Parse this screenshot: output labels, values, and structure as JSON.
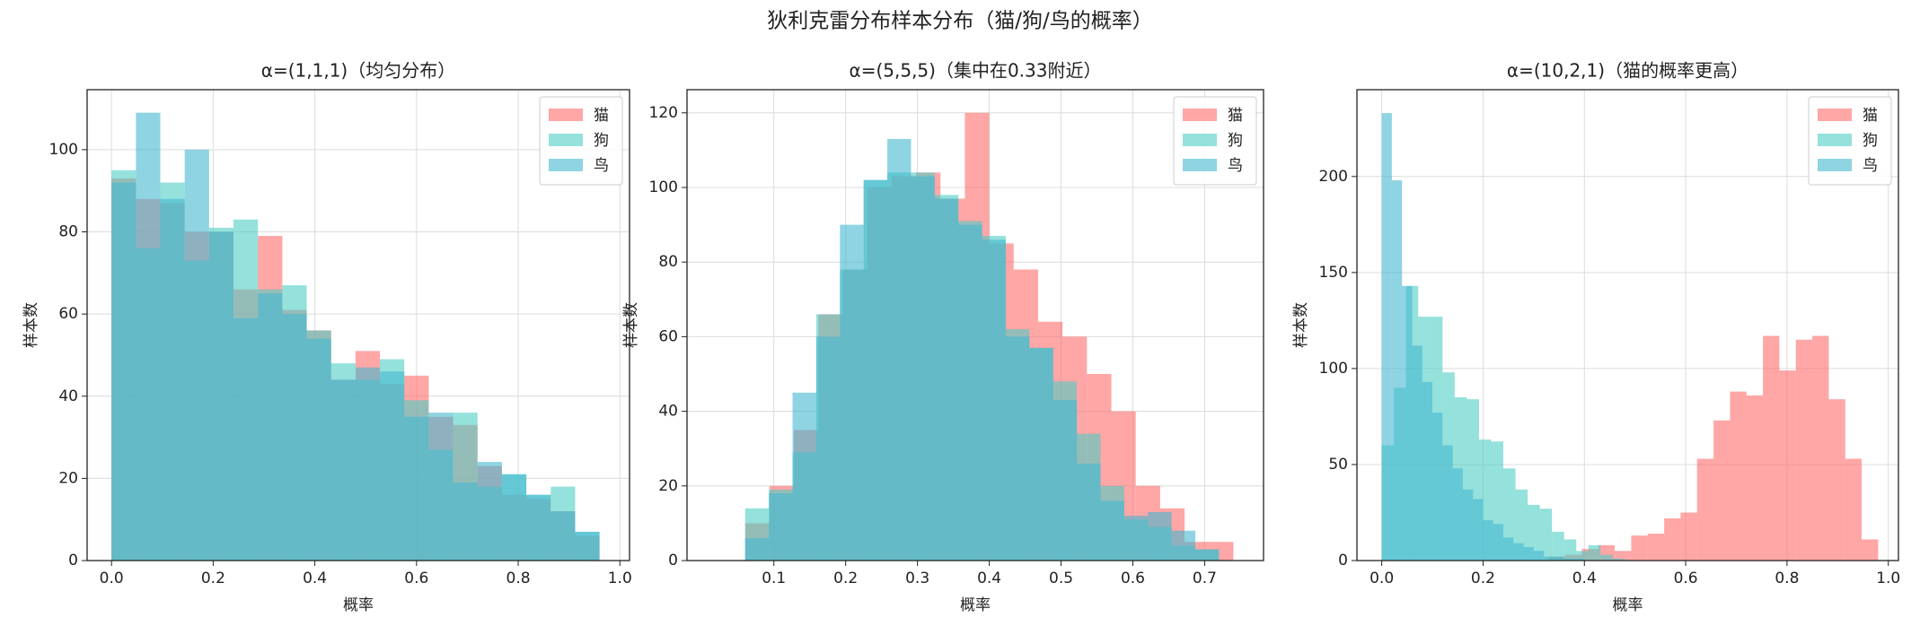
{
  "title": "狄利克雷分布样本分布（猫/狗/鸟的概率）",
  "chart_data": [
    {
      "type": "histogram",
      "title": "α=(1,1,1)（均匀分布）",
      "xlabel": "概率",
      "ylabel": "样本数",
      "xlim": [
        -0.048,
        1.019
      ],
      "ylim": [
        0,
        114.6
      ],
      "xticks": [
        {
          "value": 0,
          "label": "0.0"
        },
        0.2,
        0.4,
        0.6,
        0.8,
        {
          "value": 1,
          "label": "1.0"
        }
      ],
      "yticks": [
        0,
        20,
        40,
        60,
        80,
        100
      ],
      "grid": true,
      "legend": "upper right",
      "alpha": 0.6,
      "series": [
        {
          "name": "猫",
          "color": "#FF6B6B",
          "bins": [
            0,
            0.048,
            0.096,
            0.144,
            0.192,
            0.24,
            0.288,
            0.336,
            0.384,
            0.432,
            0.48,
            0.528,
            0.576,
            0.624,
            0.672,
            0.72,
            0.768,
            0.816,
            0.864,
            0.912,
            0.96
          ],
          "values": [
            93,
            88,
            87,
            80,
            80,
            66,
            79,
            61,
            56,
            44,
            51,
            43,
            45,
            35,
            33,
            23,
            16,
            15,
            12,
            6
          ]
        },
        {
          "name": "狗",
          "color": "#4ECDC4",
          "bins": [
            0,
            0.048,
            0.096,
            0.144,
            0.192,
            0.24,
            0.288,
            0.336,
            0.384,
            0.432,
            0.48,
            0.528,
            0.576,
            0.624,
            0.672,
            0.72,
            0.768,
            0.816,
            0.864,
            0.912,
            0.96
          ],
          "values": [
            95,
            76,
            92,
            73,
            81,
            83,
            66,
            67,
            56,
            48,
            44,
            49,
            39,
            27,
            36,
            18,
            21,
            16,
            18,
            7
          ]
        },
        {
          "name": "鸟",
          "color": "#45B7D1",
          "bins": [
            0,
            0.048,
            0.096,
            0.144,
            0.192,
            0.24,
            0.288,
            0.336,
            0.384,
            0.432,
            0.48,
            0.528,
            0.576,
            0.624,
            0.672,
            0.72,
            0.768,
            0.816,
            0.864,
            0.912,
            0.96
          ],
          "values": [
            92,
            109,
            88,
            100,
            80,
            59,
            65,
            60,
            54,
            44,
            47,
            46,
            35,
            36,
            19,
            24,
            21,
            16,
            12,
            7
          ]
        }
      ]
    },
    {
      "type": "histogram",
      "title": "α=(5,5,5)（集中在0.33附近）",
      "xlabel": "概率",
      "ylabel": "样本数",
      "xlim": [
        -0.021,
        0.782
      ],
      "ylim": [
        0,
        126.2
      ],
      "xticks": [
        0.1,
        0.2,
        0.3,
        0.4,
        0.5,
        0.6,
        0.7
      ],
      "yticks": [
        0,
        20,
        40,
        60,
        80,
        100,
        120
      ],
      "grid": true,
      "legend": "upper right",
      "alpha": 0.6,
      "series": [
        {
          "name": "猫",
          "color": "#FF6B6B",
          "bins": [
            0.06,
            0.094,
            0.128,
            0.162,
            0.196,
            0.23,
            0.264,
            0.298,
            0.332,
            0.366,
            0.4,
            0.434,
            0.468,
            0.502,
            0.536,
            0.57,
            0.604,
            0.638,
            0.672,
            0.706,
            0.74
          ],
          "values": [
            10,
            20,
            35,
            66,
            78,
            100,
            103,
            104,
            97,
            120,
            85,
            78,
            64,
            60,
            50,
            40,
            20,
            14,
            5,
            5
          ]
        },
        {
          "name": "狗",
          "color": "#4ECDC4",
          "bins": [
            0.06,
            0.093,
            0.126,
            0.159,
            0.192,
            0.225,
            0.258,
            0.291,
            0.324,
            0.357,
            0.39,
            0.423,
            0.456,
            0.489,
            0.522,
            0.555,
            0.588,
            0.621,
            0.654,
            0.687,
            0.72
          ],
          "values": [
            14,
            19,
            29,
            66,
            78,
            102,
            104,
            104,
            98,
            91,
            87,
            62,
            57,
            48,
            34,
            20,
            11,
            9,
            4,
            3
          ]
        },
        {
          "name": "鸟",
          "color": "#45B7D1",
          "bins": [
            0.06,
            0.093,
            0.126,
            0.159,
            0.192,
            0.225,
            0.258,
            0.291,
            0.324,
            0.357,
            0.39,
            0.423,
            0.456,
            0.489,
            0.522,
            0.555,
            0.588,
            0.621,
            0.654,
            0.687,
            0.72
          ],
          "values": [
            6,
            18,
            45,
            60,
            90,
            102,
            113,
            103,
            97,
            90,
            86,
            60,
            57,
            43,
            26,
            16,
            12,
            13,
            8,
            3
          ]
        }
      ]
    },
    {
      "type": "histogram",
      "title": "α=(10,2,1)（猫的概率更高）",
      "xlabel": "概率",
      "ylabel": "样本数",
      "xlim": [
        -0.049,
        1.02
      ],
      "ylim": [
        0,
        245.2
      ],
      "xticks": [
        {
          "value": 0,
          "label": "0.0"
        },
        0.2,
        0.4,
        0.6,
        0.8,
        {
          "value": 1,
          "label": "1.0"
        }
      ],
      "yticks": [
        0,
        50,
        100,
        150,
        200
      ],
      "grid": true,
      "legend": "upper right",
      "alpha": 0.6,
      "series": [
        {
          "name": "猫",
          "color": "#FF6B6B",
          "bins": [
            0.33,
            0.3625,
            0.395,
            0.4275,
            0.46,
            0.4925,
            0.525,
            0.5575,
            0.59,
            0.6225,
            0.655,
            0.6875,
            0.72,
            0.7525,
            0.785,
            0.8175,
            0.85,
            0.8825,
            0.915,
            0.9475,
            0.98
          ],
          "values": [
            2,
            3,
            6,
            8,
            5,
            13,
            14,
            22,
            25,
            53,
            73,
            88,
            86,
            117,
            99,
            115,
            117,
            84,
            53,
            11
          ]
        },
        {
          "name": "狗",
          "color": "#4ECDC4",
          "bins": [
            0,
            0.024,
            0.048,
            0.072,
            0.096,
            0.12,
            0.144,
            0.168,
            0.192,
            0.216,
            0.24,
            0.264,
            0.288,
            0.312,
            0.336,
            0.36,
            0.384,
            0.408,
            0.432,
            0.456,
            0.48
          ],
          "values": [
            60,
            90,
            143,
            127,
            127,
            98,
            85,
            84,
            63,
            62,
            48,
            37,
            29,
            27,
            15,
            11,
            5,
            8,
            3,
            1
          ]
        },
        {
          "name": "鸟",
          "color": "#45B7D1",
          "bins": [
            0,
            0.02,
            0.04,
            0.06,
            0.08,
            0.1,
            0.12,
            0.14,
            0.16,
            0.18,
            0.2,
            0.22,
            0.24,
            0.26,
            0.28,
            0.3,
            0.32,
            0.34,
            0.36,
            0.38,
            0.4
          ],
          "values": [
            233,
            198,
            143,
            112,
            93,
            77,
            60,
            48,
            37,
            32,
            21,
            19,
            12,
            9,
            7,
            5,
            2,
            2,
            1,
            1
          ]
        }
      ]
    }
  ]
}
